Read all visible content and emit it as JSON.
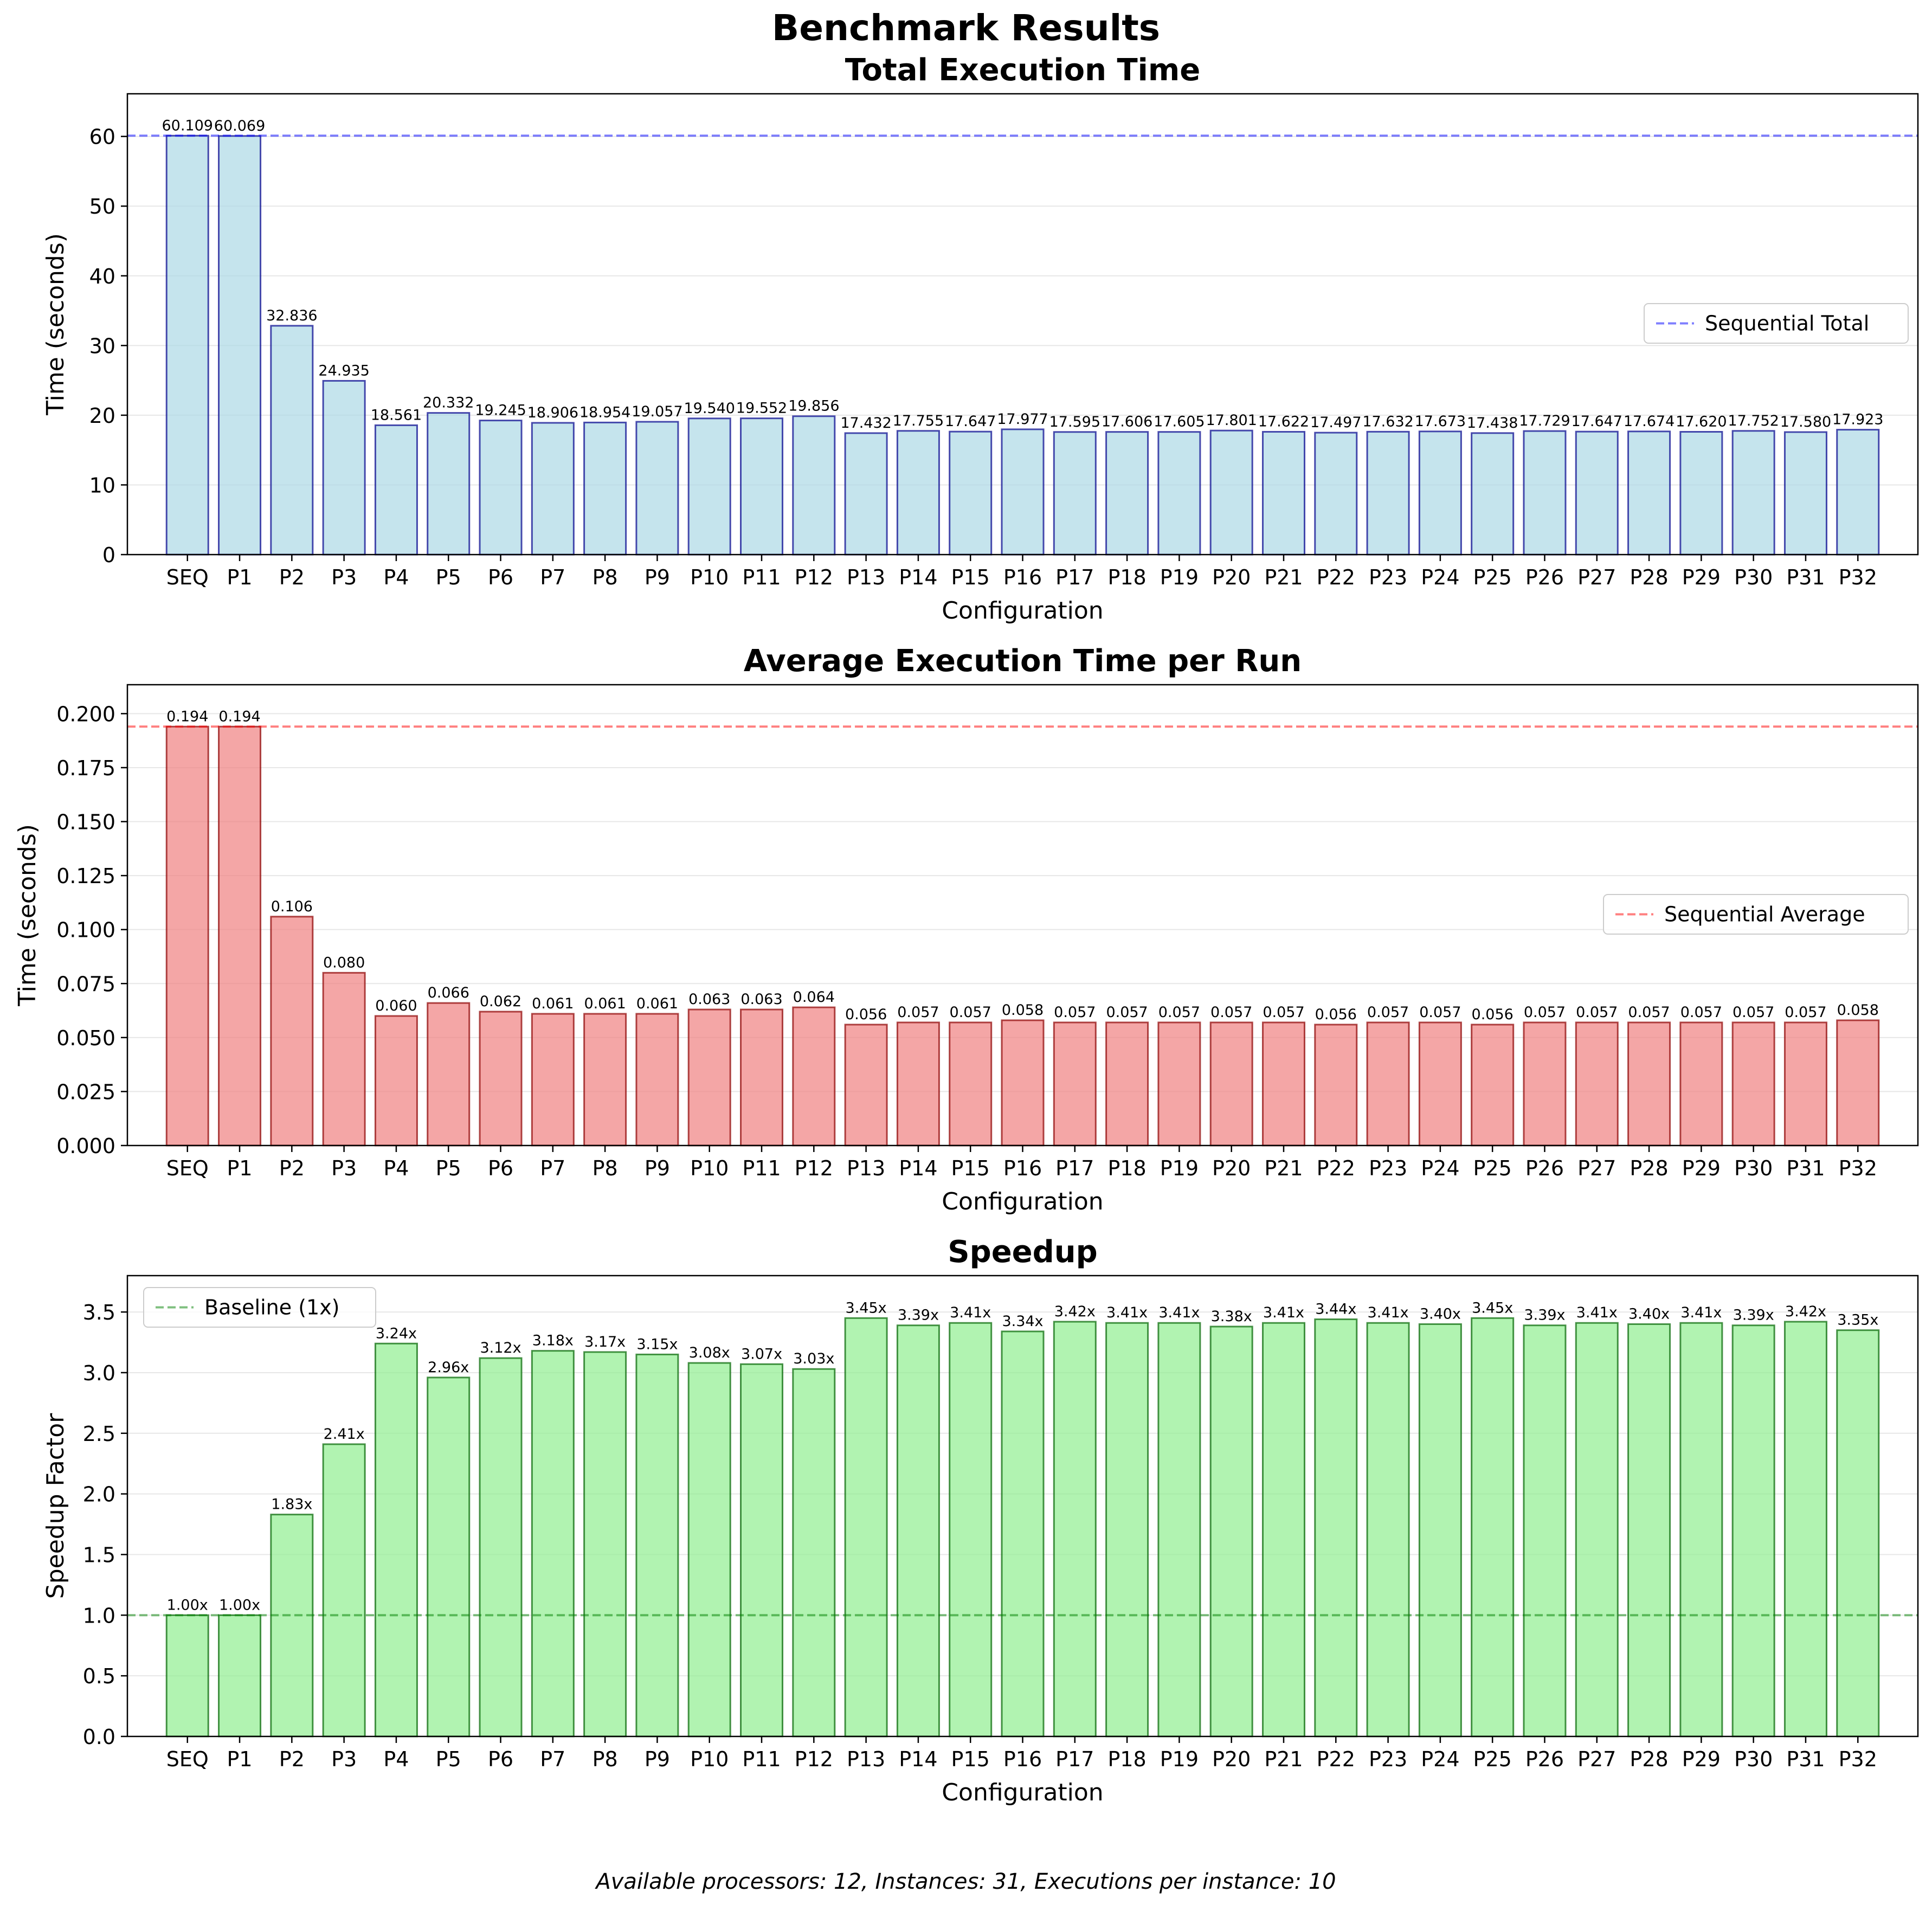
{
  "figure": {
    "suptitle": "Benchmark Results",
    "footnote": "Available processors: 12, Instances: 31, Executions per instance: 10"
  },
  "chart_data": [
    {
      "type": "bar",
      "title": "Total Execution Time",
      "xlabel": "Configuration",
      "ylabel": "Time (seconds)",
      "ylim": [
        0,
        66.12
      ],
      "yticks": [
        0,
        10,
        20,
        30,
        40,
        50,
        60
      ],
      "ytick_labels": [
        "0",
        "10",
        "20",
        "30",
        "40",
        "50",
        "60"
      ],
      "grid": "y",
      "categories": [
        "SEQ",
        "P1",
        "P2",
        "P3",
        "P4",
        "P5",
        "P6",
        "P7",
        "P8",
        "P9",
        "P10",
        "P11",
        "P12",
        "P13",
        "P14",
        "P15",
        "P16",
        "P17",
        "P18",
        "P19",
        "P20",
        "P21",
        "P22",
        "P23",
        "P24",
        "P25",
        "P26",
        "P27",
        "P28",
        "P29",
        "P30",
        "P31",
        "P32"
      ],
      "values": [
        60.109,
        60.069,
        32.836,
        24.935,
        18.561,
        20.332,
        19.245,
        18.906,
        18.954,
        19.057,
        19.54,
        19.552,
        19.856,
        17.432,
        17.755,
        17.647,
        17.977,
        17.595,
        17.606,
        17.605,
        17.801,
        17.622,
        17.497,
        17.632,
        17.673,
        17.438,
        17.729,
        17.647,
        17.674,
        17.62,
        17.752,
        17.58,
        17.923
      ],
      "bar_labels": [
        "60.109",
        "60.069",
        "32.836",
        "24.935",
        "18.561",
        "20.332",
        "19.245",
        "18.906",
        "18.954",
        "19.057",
        "19.540",
        "19.552",
        "19.856",
        "17.432",
        "17.755",
        "17.647",
        "17.977",
        "17.595",
        "17.606",
        "17.605",
        "17.801",
        "17.622",
        "17.497",
        "17.632",
        "17.673",
        "17.438",
        "17.729",
        "17.647",
        "17.674",
        "17.620",
        "17.752",
        "17.580",
        "17.923"
      ],
      "bar_color": "#add8e6",
      "edge_color": "#00008b",
      "reference_line": {
        "value": 60.109,
        "label": "Sequential Total",
        "color": "#0000ff"
      },
      "legend_position": "center-right"
    },
    {
      "type": "bar",
      "title": "Average Execution Time per Run",
      "xlabel": "Configuration",
      "ylabel": "Time (seconds)",
      "ylim": [
        0,
        0.2134
      ],
      "yticks": [
        0,
        0.025,
        0.05,
        0.075,
        0.1,
        0.125,
        0.15,
        0.175,
        0.2
      ],
      "ytick_labels": [
        "0.000",
        "0.025",
        "0.050",
        "0.075",
        "0.100",
        "0.125",
        "0.150",
        "0.175",
        "0.200"
      ],
      "grid": "y",
      "categories": [
        "SEQ",
        "P1",
        "P2",
        "P3",
        "P4",
        "P5",
        "P6",
        "P7",
        "P8",
        "P9",
        "P10",
        "P11",
        "P12",
        "P13",
        "P14",
        "P15",
        "P16",
        "P17",
        "P18",
        "P19",
        "P20",
        "P21",
        "P22",
        "P23",
        "P24",
        "P25",
        "P26",
        "P27",
        "P28",
        "P29",
        "P30",
        "P31",
        "P32"
      ],
      "values": [
        0.194,
        0.194,
        0.106,
        0.08,
        0.06,
        0.066,
        0.062,
        0.061,
        0.061,
        0.061,
        0.063,
        0.063,
        0.064,
        0.056,
        0.057,
        0.057,
        0.058,
        0.057,
        0.057,
        0.057,
        0.057,
        0.057,
        0.056,
        0.057,
        0.057,
        0.056,
        0.057,
        0.057,
        0.057,
        0.057,
        0.057,
        0.057,
        0.058
      ],
      "bar_labels": [
        "0.194",
        "0.194",
        "0.106",
        "0.080",
        "0.060",
        "0.066",
        "0.062",
        "0.061",
        "0.061",
        "0.061",
        "0.063",
        "0.063",
        "0.064",
        "0.056",
        "0.057",
        "0.057",
        "0.058",
        "0.057",
        "0.057",
        "0.057",
        "0.057",
        "0.057",
        "0.056",
        "0.057",
        "0.057",
        "0.056",
        "0.057",
        "0.057",
        "0.057",
        "0.057",
        "0.057",
        "0.057",
        "0.058"
      ],
      "bar_color": "#f08080",
      "edge_color": "#8b0000",
      "reference_line": {
        "value": 0.194,
        "label": "Sequential Average",
        "color": "#ff0000"
      },
      "legend_position": "center-right"
    },
    {
      "type": "bar",
      "title": "Speedup",
      "xlabel": "Configuration",
      "ylabel": "Speedup Factor",
      "ylim": [
        0,
        3.8
      ],
      "yticks": [
        0,
        0.5,
        1,
        1.5,
        2,
        2.5,
        3,
        3.5
      ],
      "ytick_labels": [
        "0.0",
        "0.5",
        "1.0",
        "1.5",
        "2.0",
        "2.5",
        "3.0",
        "3.5"
      ],
      "grid": "y",
      "categories": [
        "SEQ",
        "P1",
        "P2",
        "P3",
        "P4",
        "P5",
        "P6",
        "P7",
        "P8",
        "P9",
        "P10",
        "P11",
        "P12",
        "P13",
        "P14",
        "P15",
        "P16",
        "P17",
        "P18",
        "P19",
        "P20",
        "P21",
        "P22",
        "P23",
        "P24",
        "P25",
        "P26",
        "P27",
        "P28",
        "P29",
        "P30",
        "P31",
        "P32"
      ],
      "values": [
        1.0,
        1.0,
        1.83,
        2.41,
        3.24,
        2.96,
        3.12,
        3.18,
        3.17,
        3.15,
        3.08,
        3.07,
        3.03,
        3.45,
        3.39,
        3.41,
        3.34,
        3.42,
        3.41,
        3.41,
        3.38,
        3.41,
        3.44,
        3.41,
        3.4,
        3.45,
        3.39,
        3.41,
        3.4,
        3.41,
        3.39,
        3.42,
        3.35
      ],
      "bar_labels": [
        "1.00x",
        "1.00x",
        "1.83x",
        "2.41x",
        "3.24x",
        "2.96x",
        "3.12x",
        "3.18x",
        "3.17x",
        "3.15x",
        "3.08x",
        "3.07x",
        "3.03x",
        "3.45x",
        "3.39x",
        "3.41x",
        "3.34x",
        "3.42x",
        "3.41x",
        "3.41x",
        "3.38x",
        "3.41x",
        "3.44x",
        "3.41x",
        "3.40x",
        "3.45x",
        "3.39x",
        "3.41x",
        "3.40x",
        "3.41x",
        "3.39x",
        "3.42x",
        "3.35x"
      ],
      "bar_color": "#90ee90",
      "edge_color": "#006400",
      "reference_line": {
        "value": 1.0,
        "label": "Baseline (1x)",
        "color": "#008000"
      },
      "legend_position": "top-left"
    }
  ]
}
